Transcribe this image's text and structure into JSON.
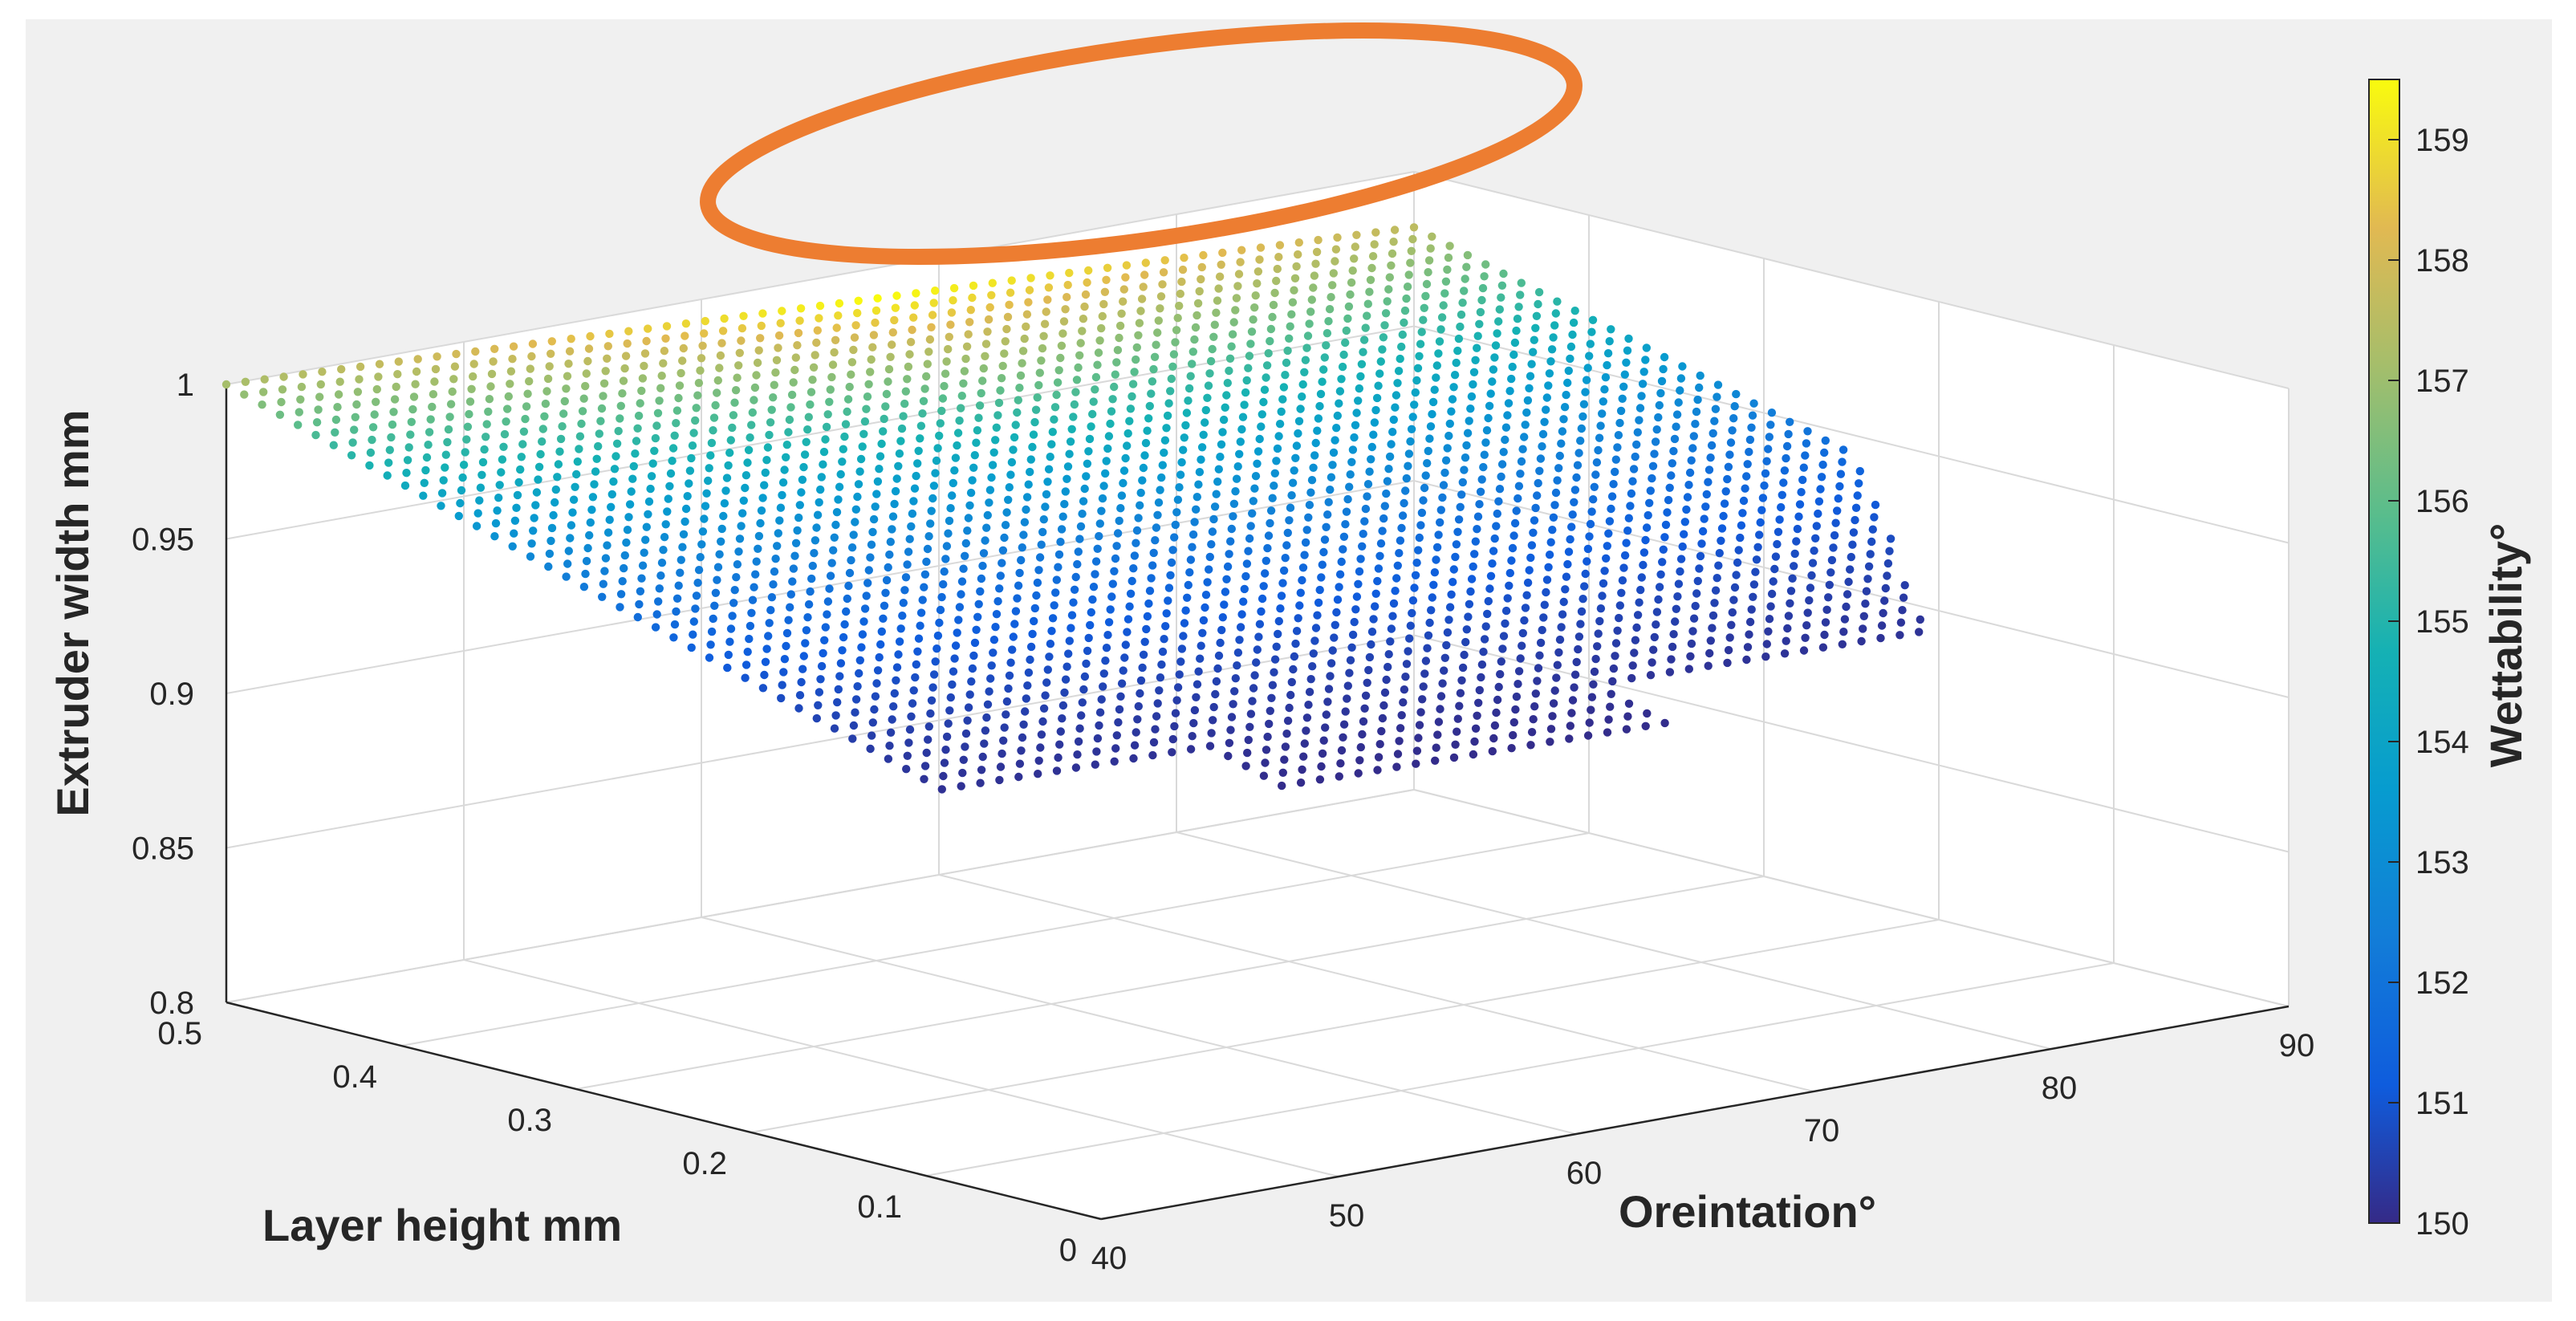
{
  "chart_data": {
    "type": "scatter3d",
    "title": "",
    "x": {
      "label": "Oreintation°",
      "range": [
        40,
        90
      ],
      "ticks": [
        "40",
        "50",
        "60",
        "70",
        "80",
        "90"
      ]
    },
    "y": {
      "label": "Layer height mm",
      "range": [
        0,
        0.5
      ],
      "ticks": [
        "0",
        "0.1",
        "0.2",
        "0.3",
        "0.4",
        "0.5"
      ]
    },
    "z": {
      "label": "Extruder width mm",
      "range": [
        0.8,
        1.0
      ],
      "ticks": [
        "0.8",
        "0.85",
        "0.9",
        "0.95",
        "1"
      ]
    },
    "colorbar": {
      "label": "Wettability°",
      "range": [
        150,
        159.5
      ],
      "ticks": [
        "150",
        "151",
        "152",
        "153",
        "154",
        "155",
        "156",
        "157",
        "158",
        "159"
      ],
      "colormap": "parula"
    },
    "surface_points": {
      "description_values": {
        "orientation_range": [
          40,
          90
        ],
        "layer_height_range": [
          0.05,
          0.5
        ],
        "extruder_width_min": 0.88,
        "extruder_width_max": 1.0,
        "wettability_min": 150,
        "wettability_max": 159.5
      }
    },
    "annotation": {
      "type": "ellipse",
      "meaning": "highlighted maximum wettability region",
      "color": "#ed7d31"
    },
    "grid": true
  }
}
